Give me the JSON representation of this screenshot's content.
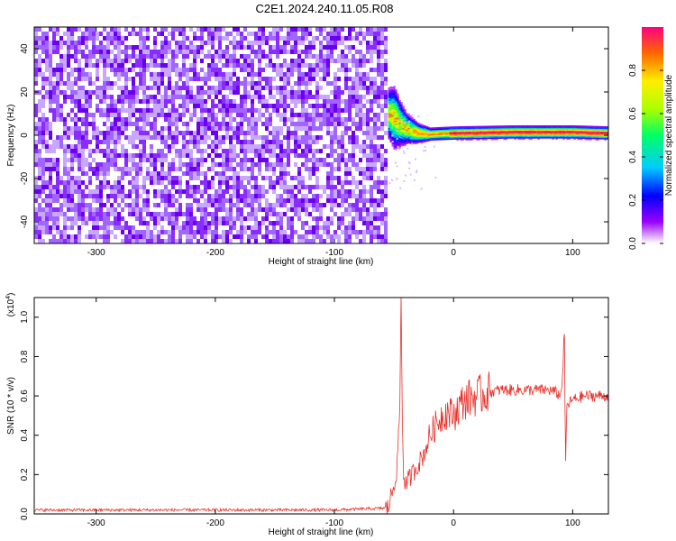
{
  "page": {
    "title": "C2E1.2024.240.11.05.R08"
  },
  "chart_data": [
    {
      "type": "heatmap",
      "title": "C2E1.2024.240.11.05.R08",
      "xlabel": "Height of straight line (km)",
      "ylabel": "Frequency (Hz)",
      "xlim": [
        -352,
        130
      ],
      "ylim": [
        -50,
        50
      ],
      "xticks": [
        -300,
        -200,
        -100,
        0,
        100
      ],
      "yticks": [
        -40,
        -20,
        0,
        20,
        40
      ],
      "noise_region_x": [
        -352,
        -57
      ],
      "signal_band": [
        {
          "x": -55,
          "f_center": 10,
          "f_spread": 8
        },
        {
          "x": -50,
          "f_center": 8,
          "f_spread": 10
        },
        {
          "x": -45,
          "f_center": 5,
          "f_spread": 7
        },
        {
          "x": -40,
          "f_center": 3,
          "f_spread": 5
        },
        {
          "x": -30,
          "f_center": 1,
          "f_spread": 3
        },
        {
          "x": -20,
          "f_center": 0.5,
          "f_spread": 2
        },
        {
          "x": 0,
          "f_center": 1,
          "f_spread": 2
        },
        {
          "x": 50,
          "f_center": 1.5,
          "f_spread": 2
        },
        {
          "x": 100,
          "f_center": 1.5,
          "f_spread": 2
        },
        {
          "x": 130,
          "f_center": 1,
          "f_spread": 2
        }
      ],
      "colorbar": {
        "label": "Normalized spectral amplitude",
        "range": [
          0,
          1
        ],
        "ticks": [
          0.0,
          0.2,
          0.4,
          0.6,
          0.8
        ]
      }
    },
    {
      "type": "line",
      "xlabel": "Height of straight line (km)",
      "ylabel": "SNR (10 * v/v)",
      "exponent_label": "(x10",
      "exponent_power": "4",
      "xlim": [
        -352,
        130
      ],
      "ylim": [
        0,
        1.1
      ],
      "xticks": [
        -300,
        -200,
        -100,
        0,
        100
      ],
      "yticks": [
        0.0,
        0.2,
        0.4,
        0.6,
        0.8,
        1.0
      ],
      "series": [
        {
          "color": "#e8302a",
          "x": [
            -352,
            -300,
            -200,
            -100,
            -55,
            -52,
            -50,
            -47,
            -45,
            -44,
            -43,
            -42,
            -40,
            -35,
            -30,
            -25,
            -20,
            -15,
            -10,
            -5,
            0,
            5,
            10,
            20,
            30,
            40,
            50,
            60,
            70,
            80,
            85,
            90,
            92,
            93,
            94,
            95,
            100,
            110,
            120,
            130
          ],
          "y": [
            0.02,
            0.02,
            0.02,
            0.02,
            0.03,
            0.1,
            0.15,
            0.25,
            0.6,
            1.08,
            0.5,
            0.2,
            0.15,
            0.2,
            0.25,
            0.3,
            0.4,
            0.45,
            0.5,
            0.52,
            0.5,
            0.55,
            0.58,
            0.6,
            0.62,
            0.63,
            0.63,
            0.63,
            0.63,
            0.63,
            0.62,
            0.6,
            0.75,
            0.97,
            0.2,
            0.55,
            0.58,
            0.6,
            0.6,
            0.6
          ]
        }
      ]
    }
  ]
}
